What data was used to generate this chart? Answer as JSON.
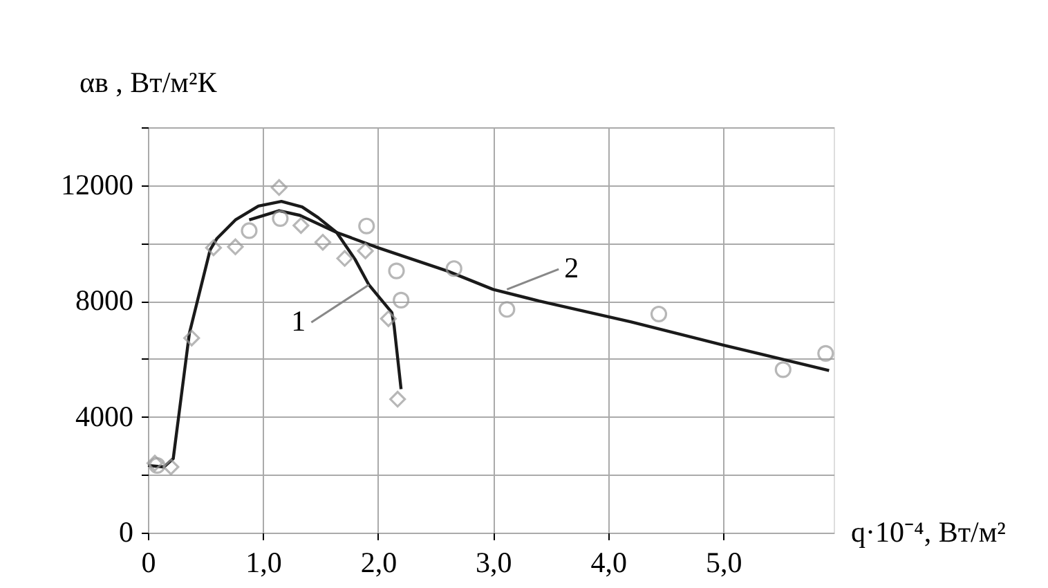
{
  "chart_data": {
    "type": "line",
    "xlabel": "q·10⁻⁴, Вт/м²",
    "ylabel": "αв , Вт/м²К",
    "xlim": [
      0,
      5.96
    ],
    "ylim": [
      0,
      14000
    ],
    "xticks": [
      0,
      {
        "value": 1,
        "label": "1,0"
      },
      {
        "value": 2,
        "label": "2,0"
      },
      {
        "value": 3,
        "label": "3,0"
      },
      {
        "value": 4,
        "label": "4,0"
      },
      {
        "value": 5,
        "label": "5,0"
      }
    ],
    "yticks": [
      0,
      {
        "value": 2000,
        "label": null
      },
      4000,
      {
        "value": 6000,
        "label": null
      },
      8000,
      {
        "value": 10000,
        "label": null
      },
      12000,
      {
        "value": 14000,
        "label": null
      }
    ],
    "grid": true,
    "series": [
      {
        "color": "#1a1a1a",
        "marker": "none",
        "x": [
          0,
          0.14,
          0.22,
          0.36,
          0.54,
          0.6,
          0.76,
          0.96,
          1.16,
          1.34,
          1.48,
          1.64,
          1.8,
          1.92,
          2.12,
          2.14,
          2.2
        ],
        "values": [
          2320,
          2270,
          2560,
          6880,
          9760,
          10160,
          10800,
          11280,
          11440,
          11250,
          10880,
          10370,
          9440,
          8560,
          7600,
          7120,
          4960
        ]
      },
      {
        "color": "#1a1a1a",
        "marker": "none",
        "x": [
          0.88,
          1.14,
          1.32,
          1.64,
          2.0,
          2.6,
          3.0,
          3.4,
          4.2,
          5.0,
          5.92
        ],
        "values": [
          10800,
          11120,
          10960,
          10370,
          9840,
          9040,
          8400,
          8000,
          7280,
          6480,
          5600
        ]
      },
      {
        "type": "scatter",
        "color": "#999999",
        "marker": "diamond",
        "x": [
          0.06,
          0.2,
          0.38,
          0.57,
          0.76,
          1.14,
          1.33,
          1.52,
          1.71,
          1.89,
          2.09,
          2.17
        ],
        "values": [
          2400,
          2270,
          6720,
          9840,
          9870,
          11920,
          10610,
          10030,
          9470,
          9730,
          7390,
          4610
        ]
      },
      {
        "type": "scatter",
        "color": "#999999",
        "marker": "circle",
        "x": [
          0.08,
          0.88,
          1.15,
          1.9,
          2.16,
          2.2,
          2.66,
          3.12,
          4.44,
          5.52,
          5.89
        ],
        "values": [
          2320,
          10430,
          10850,
          10590,
          9040,
          8030,
          9120,
          7710,
          7550,
          5630,
          6190
        ]
      }
    ],
    "annotations": [
      {
        "text": "1",
        "x": 1.92,
        "y": 8560
      },
      {
        "text": "2",
        "x": 3.12,
        "y": 8400
      }
    ]
  }
}
